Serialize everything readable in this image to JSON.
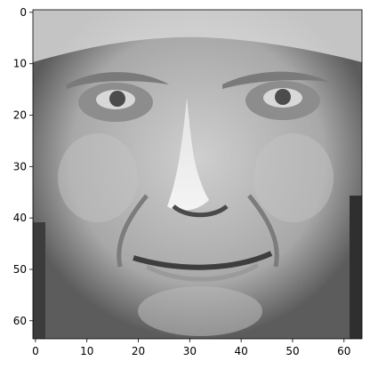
{
  "chart_data": {
    "type": "heatmap",
    "title": "",
    "xlabel": "",
    "ylabel": "",
    "colormap": "gray",
    "xlim": [
      -0.5,
      63.5
    ],
    "ylim": [
      63.5,
      -0.5
    ],
    "origin": "upper",
    "grid": false,
    "xticks": [
      0,
      10,
      20,
      30,
      40,
      50,
      60
    ],
    "xtick_labels": [
      "0",
      "10",
      "20",
      "30",
      "40",
      "50",
      "60"
    ],
    "yticks": [
      0,
      10,
      20,
      30,
      40,
      50,
      60
    ],
    "ytick_labels": [
      "0",
      "10",
      "20",
      "30",
      "40",
      "50",
      "60"
    ],
    "image": {
      "content": "grayscale 64x64 photograph of a man's face, front view",
      "rows": 64,
      "cols": 64
    }
  },
  "colors": {
    "background": "#ffffff",
    "axes_frame": "#000000",
    "text": "#000000"
  }
}
